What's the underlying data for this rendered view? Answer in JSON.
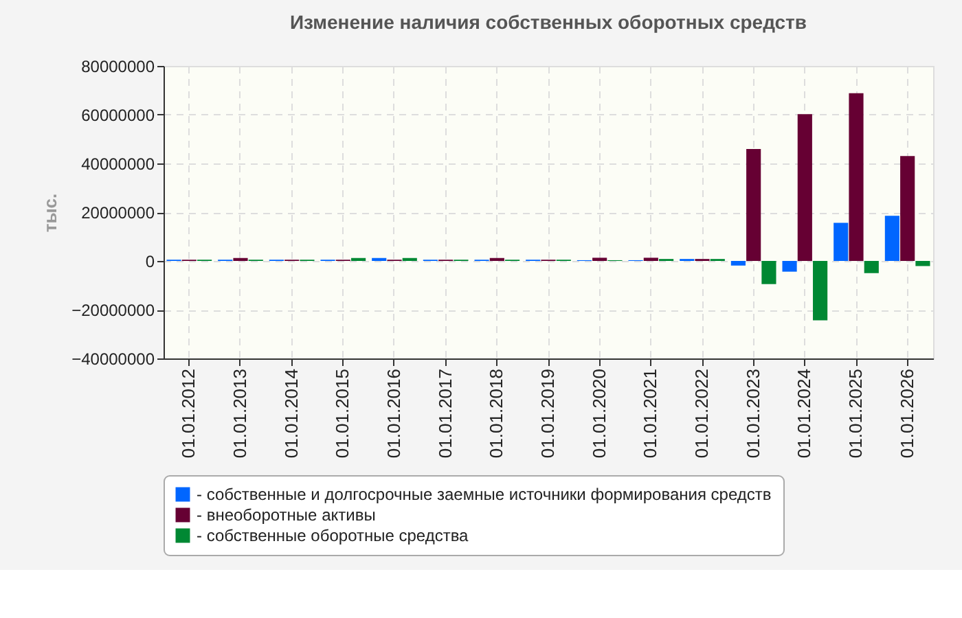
{
  "chart_data": {
    "type": "bar",
    "title": "Изменение наличия собственных оборотных средств",
    "ylabel": "тыс.",
    "categories": [
      "01.01.2012",
      "01.01.2013",
      "01.01.2014",
      "01.01.2015",
      "01.01.2016",
      "01.01.2017",
      "01.01.2018",
      "01.01.2019",
      "01.01.2020",
      "01.01.2021",
      "01.01.2022",
      "01.01.2023",
      "01.01.2024",
      "01.01.2025",
      "01.01.2026"
    ],
    "series": [
      {
        "name": "- собственные и долгосрочные заемные источники формирования средств",
        "color": "#0066ff",
        "values": [
          500000,
          500000,
          500000,
          500000,
          1200000,
          500000,
          500000,
          500000,
          300000,
          300000,
          800000,
          -1900000,
          -4400000,
          15600000,
          18500000
        ]
      },
      {
        "name": "- внеоборотные активы",
        "color": "#660033",
        "values": [
          500000,
          1200000,
          500000,
          500000,
          500000,
          500000,
          1200000,
          500000,
          1300000,
          1300000,
          800000,
          45900000,
          60200000,
          68800000,
          43000000
        ]
      },
      {
        "name": "- собственные оборотные средства",
        "color": "#008833",
        "values": [
          500000,
          500000,
          500000,
          1200000,
          1200000,
          500000,
          500000,
          500000,
          300000,
          800000,
          800000,
          -9500000,
          -24400000,
          -5000000,
          -2100000
        ]
      }
    ],
    "ylim": [
      -40000000,
      80000000
    ],
    "yticks": [
      -40000000,
      -20000000,
      0,
      20000000,
      40000000,
      60000000,
      80000000
    ],
    "grid": true,
    "legend": "bottom"
  }
}
